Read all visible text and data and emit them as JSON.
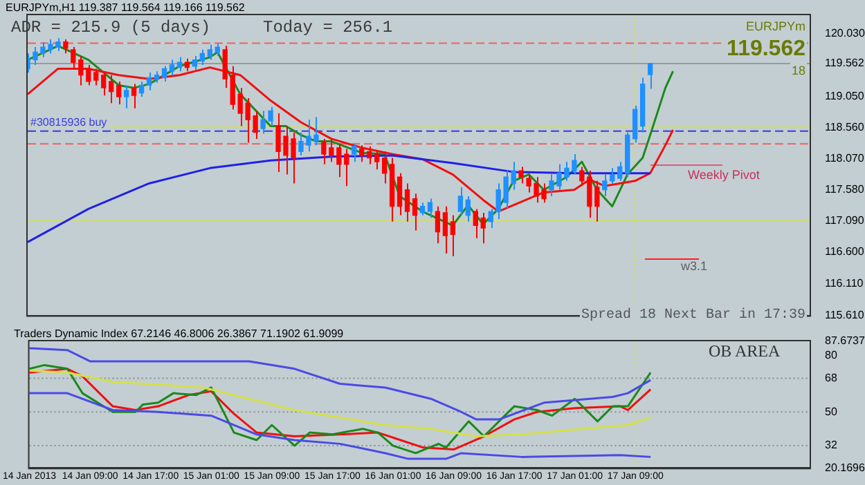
{
  "chart_data": [
    {
      "type": "candlestick",
      "title": "EURJPYm,H1 119.387 119.564 119.166 119.562",
      "categories": [
        "14 Jan 2013",
        null,
        null,
        null,
        null,
        null,
        null,
        null,
        "14 Jan 09:00",
        null,
        null,
        null,
        null,
        null,
        null,
        null,
        "14 Jan 17:00",
        null,
        null,
        null,
        null,
        null,
        null,
        null,
        "15 Jan 01:00",
        null,
        null,
        null,
        null,
        null,
        null,
        null,
        "15 Jan 09:00",
        null,
        null,
        null,
        null,
        null,
        null,
        null,
        "15 Jan 17:00",
        null,
        null,
        null,
        null,
        null,
        null,
        null,
        "16 Jan 01:00",
        null,
        null,
        null,
        null,
        null,
        null,
        null,
        "16 Jan 09:00",
        null,
        null,
        null,
        null,
        null,
        null,
        null,
        "16 Jan 17:00",
        null,
        null,
        null,
        null,
        null,
        null,
        null,
        "17 Jan 01:00",
        null,
        null,
        null,
        null,
        null,
        null,
        null,
        "17 Jan 09:00",
        null,
        null,
        null,
        null,
        null,
        null,
        null,
        null,
        null,
        null,
        null,
        null,
        null,
        null,
        null,
        null,
        null,
        null,
        null,
        null,
        null,
        null,
        null
      ],
      "ohlc": [
        [
          119.48,
          119.72,
          119.42,
          119.64
        ],
        [
          119.62,
          119.82,
          119.54,
          119.74
        ],
        [
          119.72,
          119.9,
          119.66,
          119.82
        ],
        [
          119.78,
          119.94,
          119.72,
          119.86
        ],
        [
          119.82,
          119.96,
          119.76,
          119.9
        ],
        [
          119.9,
          119.94,
          119.72,
          119.8
        ],
        [
          119.78,
          119.82,
          119.48,
          119.58
        ],
        [
          119.62,
          119.68,
          119.22,
          119.38
        ],
        [
          119.48,
          119.54,
          119.22,
          119.28
        ],
        [
          119.42,
          119.48,
          119.22,
          119.3
        ],
        [
          119.38,
          119.44,
          119.06,
          119.18
        ],
        [
          119.28,
          119.38,
          118.94,
          119.12
        ],
        [
          119.22,
          119.28,
          118.92,
          119.04
        ],
        [
          119.04,
          119.22,
          118.86,
          119.14
        ],
        [
          119.18,
          119.24,
          118.86,
          119.06
        ],
        [
          119.1,
          119.28,
          119.04,
          119.22
        ],
        [
          119.22,
          119.42,
          119.14,
          119.34
        ],
        [
          119.32,
          119.44,
          119.26,
          119.38
        ],
        [
          119.34,
          119.52,
          119.28,
          119.48
        ],
        [
          119.44,
          119.62,
          119.38,
          119.54
        ],
        [
          119.5,
          119.66,
          119.44,
          119.58
        ],
        [
          119.58,
          119.64,
          119.44,
          119.5
        ],
        [
          119.52,
          119.68,
          119.46,
          119.62
        ],
        [
          119.6,
          119.78,
          119.54,
          119.72
        ],
        [
          119.68,
          119.86,
          119.62,
          119.78
        ],
        [
          119.74,
          119.88,
          119.68,
          119.82
        ],
        [
          119.78,
          119.84,
          119.18,
          119.32
        ],
        [
          119.38,
          119.52,
          118.84,
          118.92
        ],
        [
          119.08,
          119.18,
          118.58,
          118.78
        ],
        [
          118.94,
          119.02,
          118.32,
          118.68
        ],
        [
          118.74,
          118.82,
          118.38,
          118.48
        ],
        [
          118.54,
          118.82,
          118.46,
          118.68
        ],
        [
          118.66,
          118.88,
          118.58,
          118.82
        ],
        [
          118.58,
          118.78,
          117.86,
          118.18
        ],
        [
          118.42,
          118.58,
          117.82,
          118.12
        ],
        [
          118.38,
          118.48,
          117.68,
          118.08
        ],
        [
          118.18,
          118.48,
          118.12,
          118.34
        ],
        [
          118.28,
          118.68,
          118.18,
          118.42
        ],
        [
          118.34,
          118.72,
          118.28,
          118.44
        ],
        [
          118.32,
          118.38,
          117.98,
          118.14
        ],
        [
          118.24,
          118.38,
          118.02,
          118.12
        ],
        [
          118.24,
          118.3,
          117.78,
          117.98
        ],
        [
          118.14,
          118.22,
          117.64,
          117.98
        ],
        [
          118.14,
          118.3,
          118.02,
          118.26
        ],
        [
          118.22,
          118.28,
          118.02,
          118.12
        ],
        [
          118.18,
          118.26,
          117.98,
          118.08
        ],
        [
          118.14,
          118.2,
          117.9,
          118.02
        ],
        [
          118.08,
          118.18,
          117.68,
          117.84
        ],
        [
          117.98,
          118.08,
          117.08,
          117.32
        ],
        [
          117.78,
          117.84,
          117.18,
          117.32
        ],
        [
          117.58,
          117.68,
          117.08,
          117.24
        ],
        [
          117.44,
          117.52,
          116.94,
          117.18
        ],
        [
          117.22,
          117.38,
          117.18,
          117.32
        ],
        [
          117.24,
          117.44,
          117.14,
          117.38
        ],
        [
          117.24,
          117.32,
          116.74,
          116.92
        ],
        [
          117.22,
          117.32,
          116.58,
          116.86
        ],
        [
          117.08,
          117.18,
          116.54,
          116.88
        ],
        [
          117.24,
          117.62,
          117.18,
          117.48
        ],
        [
          117.18,
          117.48,
          117.08,
          117.42
        ],
        [
          117.24,
          117.28,
          116.82,
          117.02
        ],
        [
          117.14,
          117.22,
          116.74,
          116.98
        ],
        [
          117.08,
          117.28,
          116.98,
          117.24
        ],
        [
          117.24,
          117.68,
          117.12,
          117.58
        ],
        [
          117.38,
          117.88,
          117.28,
          117.78
        ],
        [
          117.68,
          118.02,
          117.58,
          117.88
        ],
        [
          117.88,
          117.94,
          117.68,
          117.78
        ],
        [
          117.76,
          117.82,
          117.54,
          117.64
        ],
        [
          117.68,
          117.78,
          117.38,
          117.48
        ],
        [
          117.58,
          117.68,
          117.38,
          117.44
        ],
        [
          117.58,
          117.82,
          117.48,
          117.72
        ],
        [
          117.64,
          117.98,
          117.58,
          117.84
        ],
        [
          117.78,
          118.02,
          117.72,
          117.92
        ],
        [
          117.88,
          118.14,
          117.82,
          118.04
        ],
        [
          117.88,
          117.94,
          117.64,
          117.72
        ],
        [
          117.78,
          117.88,
          117.14,
          117.32
        ],
        [
          117.62,
          117.72,
          117.08,
          117.32
        ],
        [
          117.58,
          117.82,
          117.48,
          117.72
        ],
        [
          117.72,
          117.92,
          117.68,
          117.82
        ],
        [
          117.76,
          118.02,
          117.72,
          117.94
        ],
        [
          117.84,
          118.48,
          117.78,
          118.44
        ],
        [
          118.38,
          118.9,
          118.32,
          118.84
        ],
        [
          118.58,
          119.34,
          118.48,
          119.24
        ],
        [
          119.387,
          119.564,
          119.166,
          119.562
        ],
        null,
        null,
        null,
        null,
        null,
        null,
        null,
        null,
        null,
        null,
        null,
        null,
        null,
        null,
        null,
        null,
        null,
        null,
        null,
        null,
        null
      ],
      "colors": [
        "#1e90ff",
        "#1e90ff",
        "#1e90ff",
        "#1e90ff",
        "#1e90ff",
        "#ff0000",
        "#ff0000",
        "#ff0000",
        "#ff0000",
        "#ff0000",
        "#ff0000",
        "#ff0000",
        "#ff0000",
        "#1e90ff",
        "#ff0000",
        "#1e90ff",
        "#1e90ff",
        "#1e90ff",
        "#1e90ff",
        "#1e90ff",
        "#1e90ff",
        "#ff0000",
        "#1e90ff",
        "#1e90ff",
        "#1e90ff",
        "#1e90ff",
        "#ff0000",
        "#ff0000",
        "#ff0000",
        "#ff0000",
        "#ff0000",
        "#1e90ff",
        "#1e90ff",
        "#ff0000",
        "#ff0000",
        "#ff0000",
        "#1e90ff",
        "#1e90ff",
        "#1e90ff",
        "#ff0000",
        "#ff0000",
        "#ff0000",
        "#ff0000",
        "#1e90ff",
        "#ff0000",
        "#ff0000",
        "#ff0000",
        "#ff0000",
        "#ff0000",
        "#ff0000",
        "#ff0000",
        "#ff0000",
        "#1e90ff",
        "#1e90ff",
        "#ff0000",
        "#ff0000",
        "#ff0000",
        "#1e90ff",
        "#1e90ff",
        "#ff0000",
        "#ff0000",
        "#1e90ff",
        "#1e90ff",
        "#1e90ff",
        "#1e90ff",
        "#ff0000",
        "#ff0000",
        "#ff0000",
        "#ff0000",
        "#1e90ff",
        "#1e90ff",
        "#1e90ff",
        "#1e90ff",
        "#ff0000",
        "#ff0000",
        "#ff0000",
        "#1e90ff",
        "#1e90ff",
        "#1e90ff",
        "#1e90ff",
        "#1e90ff",
        "#1e90ff",
        "#1e90ff",
        null,
        null,
        null,
        null,
        null,
        null,
        null,
        null,
        null,
        null,
        null,
        null,
        null,
        null,
        null,
        null,
        null,
        null,
        null,
        null,
        null
      ],
      "series": [
        {
          "type": "line",
          "color": "#2020e8",
          "values": [
            116.76,
            null,
            null,
            null,
            null,
            null,
            null,
            null,
            117.28,
            null,
            null,
            null,
            null,
            null,
            null,
            null,
            117.68,
            null,
            null,
            null,
            null,
            null,
            null,
            null,
            117.92,
            null,
            null,
            null,
            null,
            null,
            null,
            null,
            118.04,
            null,
            null,
            null,
            null,
            null,
            null,
            null,
            118.1,
            null,
            null,
            null,
            null,
            null,
            null,
            null,
            118.12,
            null,
            null,
            null,
            null,
            null,
            null,
            null,
            118.0,
            null,
            null,
            null,
            null,
            null,
            null,
            null,
            117.86,
            null,
            null,
            null,
            null,
            null,
            null,
            null,
            117.84,
            null,
            null,
            null,
            null,
            null,
            null,
            null,
            null,
            null,
            117.84,
            null,
            null,
            null,
            null,
            null,
            null,
            null,
            null,
            null,
            null,
            null,
            null,
            null,
            null,
            null,
            null,
            null,
            null,
            null,
            null,
            null
          ]
        },
        {
          "type": "line",
          "color": "#f01010",
          "values": [
            119.08,
            null,
            null,
            null,
            119.48,
            null,
            null,
            null,
            119.48,
            null,
            null,
            null,
            119.38,
            null,
            null,
            null,
            119.32,
            null,
            null,
            null,
            119.38,
            null,
            null,
            null,
            119.5,
            null,
            null,
            null,
            119.38,
            null,
            null,
            null,
            118.98,
            null,
            null,
            null,
            118.64,
            null,
            null,
            null,
            118.38,
            null,
            null,
            null,
            118.24,
            null,
            null,
            null,
            118.14,
            null,
            null,
            null,
            118.06,
            null,
            null,
            null,
            117.82,
            null,
            null,
            null,
            117.42,
            null,
            117.24,
            null,
            117.34,
            null,
            null,
            null,
            117.54,
            null,
            null,
            null,
            117.58,
            null,
            117.74,
            null,
            117.64,
            null,
            null,
            null,
            117.72,
            null,
            117.84,
            null,
            118.28,
            118.52,
            null,
            null,
            null,
            null,
            null,
            null,
            null,
            null,
            null,
            null,
            null,
            null,
            null,
            null,
            null,
            null,
            null,
            null
          ]
        },
        {
          "type": "line",
          "color": "#1a8a1a",
          "values": [
            119.62,
            null,
            null,
            null,
            119.84,
            null,
            null,
            null,
            119.62,
            null,
            null,
            null,
            119.22,
            null,
            119.18,
            null,
            119.24,
            null,
            null,
            null,
            119.52,
            null,
            null,
            null,
            119.66,
            119.74,
            null,
            null,
            119.08,
            null,
            null,
            null,
            118.58,
            null,
            118.58,
            null,
            118.44,
            null,
            118.34,
            null,
            118.34,
            null,
            null,
            null,
            118.16,
            null,
            null,
            118.14,
            null,
            117.48,
            null,
            null,
            117.24,
            null,
            null,
            null,
            117.02,
            null,
            117.34,
            null,
            117.04,
            null,
            117.28,
            null,
            117.72,
            null,
            117.82,
            null,
            117.58,
            null,
            null,
            117.78,
            null,
            118.02,
            null,
            117.58,
            null,
            117.32,
            null,
            117.82,
            null,
            118.08,
            118.44,
            null,
            119.18,
            119.44,
            null,
            null,
            null,
            null,
            null,
            null,
            null,
            null,
            null,
            null,
            null,
            null,
            null,
            null,
            null,
            null,
            null,
            null
          ]
        }
      ],
      "ylim": [
        115.61,
        120.32
      ],
      "yticks": [
        {
          "value": 115.61,
          "label": "115.610"
        },
        {
          "value": 116.11,
          "label": "116.110"
        },
        {
          "value": 116.6,
          "label": "116.600"
        },
        {
          "value": 117.09,
          "label": "117.090"
        },
        {
          "value": 117.58,
          "label": "117.580"
        },
        {
          "value": 118.07,
          "label": "118.070"
        },
        {
          "value": 118.56,
          "label": "118.560"
        },
        {
          "value": 119.05,
          "label": "119.050"
        },
        {
          "value": 119.562,
          "label": "119.562"
        },
        {
          "value": 120.03,
          "label": "120.030"
        }
      ],
      "tick_labels": "y",
      "ref_lines": [
        {
          "axis": "y",
          "value": 118.56,
          "color": "#d4e04a"
        },
        {
          "axis": "y",
          "value": 117.09,
          "color": "#d4e04a"
        },
        {
          "axis": "y",
          "value": 118.5,
          "label": "#30815936 buy",
          "color": "#3a3ae0",
          "line_style": "dashed"
        },
        {
          "axis": "y",
          "value": 118.3,
          "color": "#f06060",
          "line_style": "dashed"
        },
        {
          "axis": "y",
          "value": 119.88,
          "color": "#f06060",
          "line_style": "dashed"
        },
        {
          "axis": "y",
          "value": 119.562,
          "color": "#9a9a9a"
        },
        {
          "axis": "x",
          "value": "17 Jan 09:00",
          "color": "#d4e04a",
          "line_style": "dotted"
        },
        {
          "axis": "y",
          "value": 117.98,
          "label": "Weekly Pivot",
          "color": "#e05a7a"
        },
        {
          "axis": "y",
          "value": 116.5,
          "label": "w3.1",
          "color": "#ff2020"
        }
      ],
      "annotations": [
        "ADR = 215.9 (5 days)",
        "Today = 256.1",
        "EURJPYm",
        "119.562",
        "18",
        "Spread 18 Next Bar in 17:39"
      ]
    },
    {
      "type": "line",
      "title": "Traders Dynamic Index 67.2146 46.8006 26.3867 71.1902 61.9099",
      "categories": [
        "14 Jan 2013",
        null,
        null,
        null,
        null,
        null,
        null,
        null,
        "14 Jan 09:00",
        null,
        null,
        null,
        null,
        null,
        null,
        null,
        "14 Jan 17:00",
        null,
        null,
        null,
        null,
        null,
        null,
        null,
        "15 Jan 01:00",
        null,
        null,
        null,
        null,
        null,
        null,
        null,
        "15 Jan 09:00",
        null,
        null,
        null,
        null,
        null,
        null,
        null,
        "15 Jan 17:00",
        null,
        null,
        null,
        null,
        null,
        null,
        null,
        "16 Jan 01:00",
        null,
        null,
        null,
        null,
        null,
        null,
        null,
        "16 Jan 09:00",
        null,
        null,
        null,
        null,
        null,
        null,
        null,
        "16 Jan 17:00",
        null,
        null,
        null,
        null,
        null,
        null,
        null,
        "17 Jan 01:00",
        null,
        null,
        null,
        null,
        null,
        null,
        null,
        "17 Jan 09:00",
        null,
        null,
        null,
        null,
        null,
        null,
        null,
        null,
        null,
        null,
        null,
        null,
        null,
        null,
        null,
        null,
        null,
        null,
        null,
        null,
        null,
        null,
        null
      ],
      "series": [
        {
          "type": "line",
          "color": "#4a4ae6",
          "values": [
            84,
            null,
            null,
            null,
            null,
            83,
            null,
            null,
            77,
            null,
            null,
            null,
            null,
            null,
            null,
            null,
            null,
            77,
            null,
            null,
            null,
            null,
            null,
            null,
            null,
            null,
            null,
            null,
            null,
            77,
            null,
            null,
            null,
            null,
            null,
            73,
            null,
            null,
            null,
            null,
            null,
            65,
            null,
            null,
            null,
            null,
            null,
            63,
            null,
            null,
            null,
            null,
            null,
            57,
            null,
            null,
            null,
            50,
            null,
            46,
            null,
            null,
            46,
            null,
            null,
            null,
            null,
            null,
            55,
            null,
            null,
            null,
            null,
            null,
            null,
            null,
            null,
            58,
            null,
            60,
            null,
            null,
            67,
            null,
            null,
            null,
            null,
            null,
            null,
            null,
            null,
            null,
            null,
            null,
            null,
            null,
            null,
            null,
            null,
            null,
            null,
            null,
            null,
            null
          ]
        },
        {
          "type": "line",
          "color": "#4a4ae6",
          "values": [
            60,
            null,
            null,
            null,
            null,
            60,
            null,
            null,
            null,
            null,
            null,
            51,
            null,
            null,
            null,
            null,
            null,
            50,
            null,
            null,
            null,
            null,
            null,
            null,
            48,
            null,
            null,
            null,
            null,
            null,
            38,
            null,
            null,
            null,
            null,
            35,
            null,
            null,
            null,
            null,
            null,
            33,
            null,
            null,
            null,
            null,
            null,
            28,
            null,
            null,
            25,
            null,
            null,
            null,
            null,
            25,
            null,
            28,
            null,
            null,
            null,
            null,
            null,
            null,
            null,
            26,
            null,
            null,
            null,
            null,
            null,
            null,
            null,
            null,
            null,
            null,
            null,
            null,
            27,
            null,
            null,
            null,
            26,
            null,
            null,
            null,
            null,
            null,
            null,
            null,
            null,
            null,
            null,
            null,
            null,
            null,
            null,
            null,
            null,
            null,
            null,
            null,
            null,
            null
          ]
        },
        {
          "type": "line",
          "color": "#d4e04a",
          "values": [
            72,
            null,
            null,
            null,
            null,
            71,
            null,
            null,
            null,
            null,
            null,
            66,
            null,
            null,
            null,
            null,
            null,
            null,
            null,
            null,
            null,
            null,
            null,
            63,
            null,
            null,
            null,
            null,
            null,
            null,
            null,
            null,
            null,
            null,
            null,
            51,
            null,
            null,
            null,
            null,
            null,
            null,
            null,
            null,
            null,
            null,
            null,
            43,
            null,
            null,
            null,
            null,
            null,
            41,
            null,
            null,
            null,
            null,
            null,
            37,
            null,
            null,
            null,
            null,
            null,
            38,
            null,
            null,
            null,
            null,
            null,
            null,
            null,
            41,
            null,
            null,
            null,
            null,
            null,
            43,
            null,
            null,
            47,
            null,
            null,
            null,
            null,
            null,
            null,
            null,
            null,
            null,
            null,
            null,
            null,
            null,
            null,
            null,
            null,
            null,
            null,
            null,
            null,
            null
          ]
        },
        {
          "type": "line",
          "color": "#1a8a1a",
          "values": [
            73,
            null,
            75,
            null,
            null,
            73,
            null,
            60,
            null,
            null,
            null,
            50,
            null,
            null,
            50,
            54,
            null,
            55,
            null,
            60,
            null,
            null,
            59,
            null,
            63,
            null,
            47,
            39,
            null,
            null,
            35,
            null,
            43,
            null,
            null,
            32,
            null,
            39,
            null,
            null,
            38,
            null,
            null,
            null,
            41,
            null,
            39,
            null,
            32,
            null,
            null,
            28,
            null,
            null,
            33,
            31,
            null,
            null,
            45,
            null,
            37,
            null,
            null,
            null,
            53,
            null,
            null,
            51,
            null,
            48,
            null,
            null,
            57,
            null,
            null,
            45,
            null,
            53,
            null,
            53,
            null,
            65,
            71,
            null,
            null,
            null,
            null,
            null,
            null,
            null,
            null,
            null,
            null,
            null,
            null,
            null,
            null,
            null,
            null,
            null,
            null,
            null,
            null,
            null
          ]
        },
        {
          "type": "line",
          "color": "#f01010",
          "values": [
            71,
            null,
            null,
            null,
            null,
            73,
            null,
            69,
            null,
            null,
            null,
            53,
            null,
            null,
            51,
            null,
            null,
            53,
            null,
            null,
            null,
            59,
            null,
            null,
            61,
            null,
            null,
            49,
            null,
            null,
            39,
            null,
            null,
            null,
            null,
            37,
            null,
            null,
            null,
            null,
            null,
            38,
            null,
            null,
            null,
            null,
            39,
            null,
            null,
            35,
            null,
            null,
            31,
            null,
            null,
            null,
            30,
            null,
            null,
            null,
            37,
            null,
            null,
            null,
            46,
            null,
            null,
            50,
            null,
            null,
            null,
            null,
            52,
            null,
            null,
            null,
            null,
            null,
            53,
            51,
            null,
            null,
            62,
            null,
            null,
            null,
            null,
            null,
            null,
            null,
            null,
            null,
            null,
            null,
            null,
            null,
            null,
            null,
            null,
            null,
            null,
            null,
            null,
            null
          ]
        }
      ],
      "ylim": [
        20.1696,
        87.6737
      ],
      "yticks": [
        20.1696,
        32,
        50,
        68,
        80,
        87.6737
      ],
      "ref_lines": [
        {
          "axis": "y",
          "value": 68,
          "color": "#8a8a8a",
          "line_style": "dotted"
        },
        {
          "axis": "y",
          "value": 50,
          "color": "#8a8a8a",
          "line_style": "dotted"
        },
        {
          "axis": "y",
          "value": 32,
          "color": "#8a8a8a",
          "line_style": "dotted"
        },
        {
          "axis": "x",
          "value": "17 Jan 09:00",
          "color": "#d4e04a",
          "line_style": "dotted"
        }
      ],
      "annotations": [
        "OB AREA"
      ]
    }
  ]
}
